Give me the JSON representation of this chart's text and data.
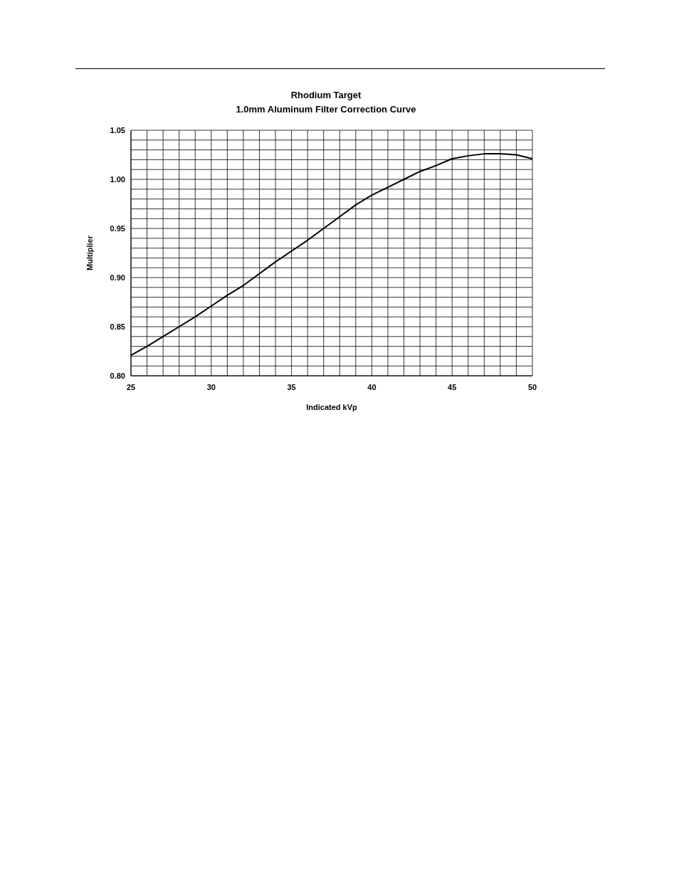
{
  "chart_data": {
    "type": "line",
    "title": "Rhodium Target",
    "subtitle": "1.0mm Aluminum Filter Correction Curve",
    "xlabel": "Indicated kVp",
    "ylabel": "Multiplier",
    "x": [
      25,
      26,
      27,
      28,
      29,
      30,
      31,
      32,
      33,
      34,
      35,
      36,
      37,
      38,
      39,
      40,
      41,
      42,
      43,
      44,
      45,
      46,
      47,
      48,
      49,
      50
    ],
    "series": [
      {
        "color": "#000000",
        "values": [
          0.821,
          0.83,
          0.84,
          0.85,
          0.86,
          0.871,
          0.882,
          0.892,
          0.904,
          0.916,
          0.927,
          0.938,
          0.95,
          0.962,
          0.974,
          0.984,
          0.992,
          1.0,
          1.008,
          1.014,
          1.021,
          1.024,
          1.026,
          1.026,
          1.025,
          1.021
        ]
      }
    ],
    "xlim": [
      25,
      50
    ],
    "xticks": [
      25,
      {
        "value": 26,
        "label": null
      },
      {
        "value": 27,
        "label": null
      },
      {
        "value": 28,
        "label": null
      },
      {
        "value": 29,
        "label": null
      },
      30,
      {
        "value": 31,
        "label": null
      },
      {
        "value": 32,
        "label": null
      },
      {
        "value": 33,
        "label": null
      },
      {
        "value": 34,
        "label": null
      },
      35,
      {
        "value": 36,
        "label": null
      },
      {
        "value": 37,
        "label": null
      },
      {
        "value": 38,
        "label": null
      },
      {
        "value": 39,
        "label": null
      },
      40,
      {
        "value": 41,
        "label": null
      },
      {
        "value": 42,
        "label": null
      },
      {
        "value": 43,
        "label": null
      },
      {
        "value": 44,
        "label": null
      },
      45,
      {
        "value": 46,
        "label": null
      },
      {
        "value": 47,
        "label": null
      },
      {
        "value": 48,
        "label": null
      },
      {
        "value": 49,
        "label": null
      },
      50
    ],
    "ylim": [
      0.8,
      1.05
    ],
    "yticks": [
      {
        "value": 0.8,
        "label": "0.80"
      },
      {
        "value": 0.81,
        "label": null
      },
      {
        "value": 0.82,
        "label": null
      },
      {
        "value": 0.83,
        "label": null
      },
      {
        "value": 0.84,
        "label": null
      },
      {
        "value": 0.85,
        "label": "0.85"
      },
      {
        "value": 0.86,
        "label": null
      },
      {
        "value": 0.87,
        "label": null
      },
      {
        "value": 0.88,
        "label": null
      },
      {
        "value": 0.89,
        "label": null
      },
      {
        "value": 0.9,
        "label": "0.90"
      },
      {
        "value": 0.91,
        "label": null
      },
      {
        "value": 0.92,
        "label": null
      },
      {
        "value": 0.93,
        "label": null
      },
      {
        "value": 0.94,
        "label": null
      },
      {
        "value": 0.95,
        "label": "0.95"
      },
      {
        "value": 0.96,
        "label": null
      },
      {
        "value": 0.97,
        "label": null
      },
      {
        "value": 0.98,
        "label": null
      },
      {
        "value": 0.99,
        "label": null
      },
      {
        "value": 1.0,
        "label": "1.00"
      },
      {
        "value": 1.01,
        "label": null
      },
      {
        "value": 1.02,
        "label": null
      },
      {
        "value": 1.03,
        "label": null
      },
      {
        "value": 1.04,
        "label": null
      },
      {
        "value": 1.05,
        "label": "1.05"
      }
    ],
    "grid": true,
    "legend": false,
    "marker": "none",
    "line_style": "solid"
  }
}
